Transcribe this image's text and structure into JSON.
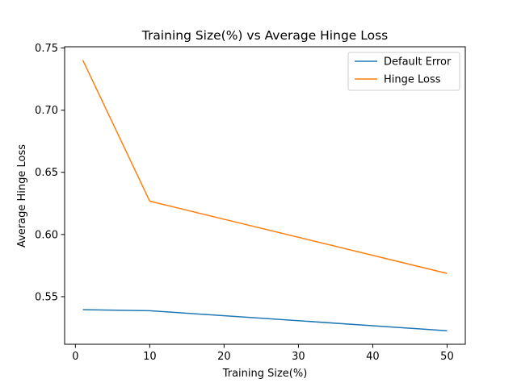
{
  "chart_data": {
    "type": "line",
    "title": "Training Size(%) vs Average Hinge Loss",
    "xlabel": "Training Size(%)",
    "ylabel": "Average Hinge Loss",
    "x": [
      1,
      10,
      50
    ],
    "series": [
      {
        "name": "Default Error",
        "color": "#1f77b4",
        "values": [
          0.5395,
          0.5387,
          0.5226
        ]
      },
      {
        "name": "Hinge Loss",
        "color": "#ff7f0e",
        "values": [
          0.7402,
          0.6268,
          0.5687
        ]
      }
    ],
    "xlim": [
      -1.45,
      52.45
    ],
    "ylim": [
      0.5117,
      0.751
    ],
    "xticks": [
      0,
      10,
      20,
      30,
      40,
      50
    ],
    "xtick_labels": [
      "0",
      "10",
      "20",
      "30",
      "40",
      "50"
    ],
    "yticks": [
      0.55,
      0.6,
      0.65,
      0.7,
      0.75
    ],
    "ytick_labels": [
      "0.55",
      "0.60",
      "0.65",
      "0.70",
      "0.75"
    ],
    "grid": false,
    "legend_position": "top-right"
  }
}
